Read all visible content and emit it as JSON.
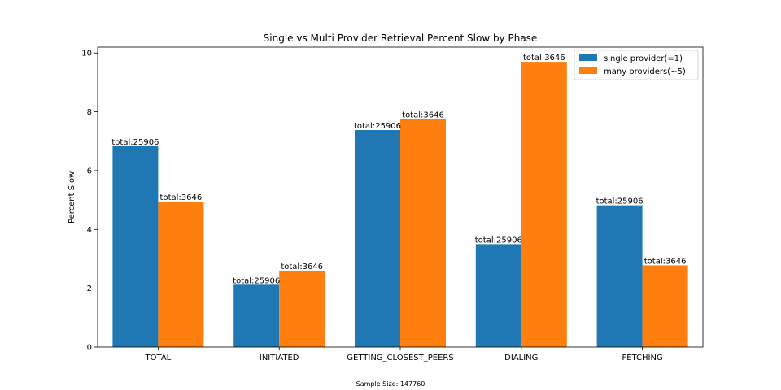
{
  "chart_data": {
    "type": "bar",
    "title": "Single vs Multi Provider Retrieval Percent Slow by Phase",
    "xlabel": "",
    "ylabel": "Percent Slow",
    "footnote": "Sample Size: 147760",
    "categories": [
      "TOTAL",
      "INITIATED",
      "GETTING_CLOSEST_PEERS",
      "DIALING",
      "FETCHING"
    ],
    "ylim": [
      0,
      10.2
    ],
    "yticks": [
      0,
      2,
      4,
      6,
      8,
      10
    ],
    "legend_position": "top-right",
    "series": [
      {
        "name": "single provider(=1)",
        "color": "#1f77b4",
        "values": [
          6.83,
          2.12,
          7.38,
          3.5,
          4.82
        ],
        "labels": [
          "total:25906",
          "total:25906",
          "total:25906",
          "total:25906",
          "total:25906"
        ]
      },
      {
        "name": "many providers(~5)",
        "color": "#ff7f0e",
        "values": [
          4.95,
          2.6,
          7.76,
          9.7,
          2.78
        ],
        "labels": [
          "total:3646",
          "total:3646",
          "total:3646",
          "total:3646",
          "total:3646"
        ]
      }
    ]
  }
}
